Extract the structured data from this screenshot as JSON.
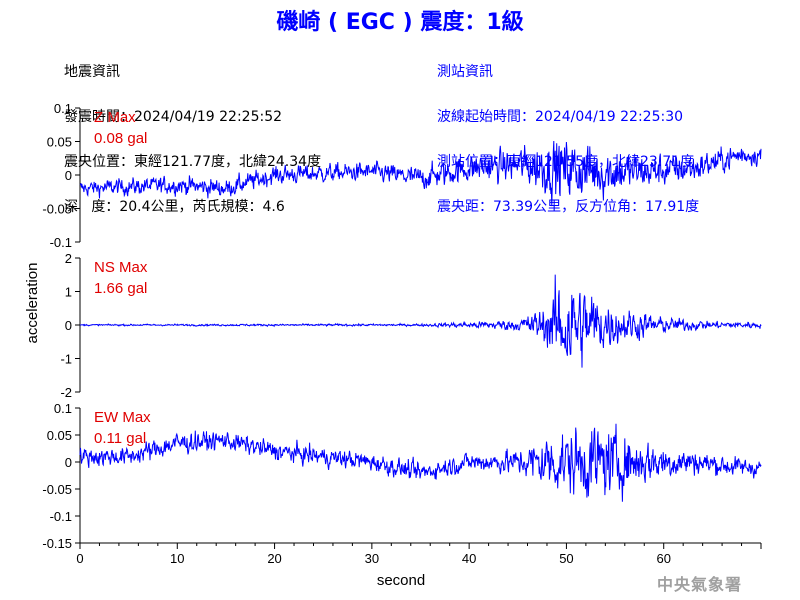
{
  "title": "磯崎 ( EGC ) 震度：1級",
  "event_info": [
    "地震資訊",
    "發震時間：2024/04/19 22:25:52",
    "震央位置：東經121.77度，北緯24.34度",
    "深   度：20.4公里，芮氏規模：4.6"
  ],
  "station_info": [
    "測站資訊",
    "波線起始時間：2024/04/19 22:25:30",
    "測站位置：東經121.55度，北緯23.71度",
    "震央距：73.39公里，反方位角：17.91度"
  ],
  "watermark": "中央氣象署",
  "colors": {
    "trace": "#0000ff",
    "max_label": "#e00000",
    "title": "#0000ff",
    "axis": "#000000"
  },
  "chart_data": {
    "type": "line",
    "xlabel": "second",
    "ylabel": "acceleration",
    "xlim": [
      0,
      70
    ],
    "xticks": [
      0,
      10,
      20,
      30,
      40,
      50,
      60
    ],
    "panels": [
      {
        "name": "Z",
        "max_label": "Z Max",
        "max_value": "0.08 gal",
        "ylim": [
          -0.1,
          0.1
        ],
        "yticks": [
          0.1,
          0.05,
          0,
          -0.05,
          -0.1
        ],
        "envelope": [
          {
            "t": 0,
            "base": -0.02,
            "amp": 0.01
          },
          {
            "t": 10,
            "base": -0.015,
            "amp": 0.012
          },
          {
            "t": 15,
            "base": -0.02,
            "amp": 0.012
          },
          {
            "t": 20,
            "base": 0.0,
            "amp": 0.012
          },
          {
            "t": 30,
            "base": 0.005,
            "amp": 0.012
          },
          {
            "t": 35,
            "base": -0.005,
            "amp": 0.015
          },
          {
            "t": 40,
            "base": 0.01,
            "amp": 0.018
          },
          {
            "t": 45,
            "base": 0.015,
            "amp": 0.022
          },
          {
            "t": 49,
            "base": 0.01,
            "amp": 0.04
          },
          {
            "t": 53,
            "base": 0.005,
            "amp": 0.035
          },
          {
            "t": 58,
            "base": 0.005,
            "amp": 0.022
          },
          {
            "t": 63,
            "base": 0.01,
            "amp": 0.018
          },
          {
            "t": 68,
            "base": 0.03,
            "amp": 0.015
          },
          {
            "t": 70,
            "base": 0.03,
            "amp": 0.012
          }
        ]
      },
      {
        "name": "NS",
        "max_label": "NS Max",
        "max_value": "1.66 gal",
        "ylim": [
          -2,
          2
        ],
        "yticks": [
          2,
          1,
          0,
          -1,
          -2
        ],
        "envelope": [
          {
            "t": 0,
            "base": 0,
            "amp": 0.02
          },
          {
            "t": 35,
            "base": 0,
            "amp": 0.03
          },
          {
            "t": 40,
            "base": 0,
            "amp": 0.08
          },
          {
            "t": 45,
            "base": 0,
            "amp": 0.15
          },
          {
            "t": 48,
            "base": 0,
            "amp": 0.5
          },
          {
            "t": 49.5,
            "base": 0,
            "amp": 1.4
          },
          {
            "t": 52,
            "base": 0,
            "amp": 1.0
          },
          {
            "t": 55,
            "base": 0,
            "amp": 0.5
          },
          {
            "t": 60,
            "base": 0,
            "amp": 0.2
          },
          {
            "t": 65,
            "base": 0,
            "amp": 0.1
          },
          {
            "t": 70,
            "base": 0,
            "amp": 0.08
          }
        ]
      },
      {
        "name": "EW",
        "max_label": "EW Max",
        "max_value": "0.11 gal",
        "ylim": [
          -0.15,
          0.1
        ],
        "yticks": [
          0.1,
          0.05,
          0,
          -0.05,
          -0.1,
          -0.15
        ],
        "envelope": [
          {
            "t": 0,
            "base": 0.01,
            "amp": 0.015
          },
          {
            "t": 5,
            "base": 0.01,
            "amp": 0.015
          },
          {
            "t": 10,
            "base": 0.035,
            "amp": 0.018
          },
          {
            "t": 15,
            "base": 0.04,
            "amp": 0.015
          },
          {
            "t": 20,
            "base": 0.02,
            "amp": 0.015
          },
          {
            "t": 30,
            "base": 0.0,
            "amp": 0.015
          },
          {
            "t": 35,
            "base": -0.02,
            "amp": 0.015
          },
          {
            "t": 40,
            "base": 0.0,
            "amp": 0.015
          },
          {
            "t": 45,
            "base": 0.0,
            "amp": 0.02
          },
          {
            "t": 48,
            "base": 0.0,
            "amp": 0.045
          },
          {
            "t": 53,
            "base": 0.0,
            "amp": 0.06
          },
          {
            "t": 58,
            "base": 0.0,
            "amp": 0.035
          },
          {
            "t": 63,
            "base": 0.0,
            "amp": 0.02
          },
          {
            "t": 68,
            "base": -0.01,
            "amp": 0.015
          },
          {
            "t": 70,
            "base": -0.01,
            "amp": 0.015
          }
        ]
      }
    ]
  }
}
